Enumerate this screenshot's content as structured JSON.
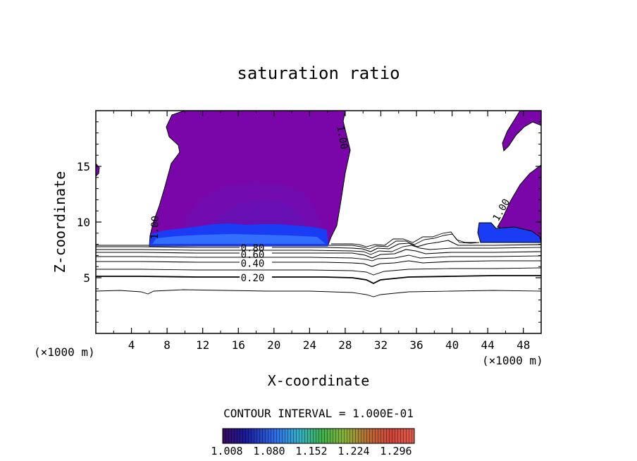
{
  "chart_data": {
    "type": "contour",
    "title": "saturation ratio",
    "xlabel": "X-coordinate",
    "ylabel": "Z-coordinate",
    "x_unit_left": "(×1000 m)",
    "x_unit_right": "(×1000 m)",
    "xlim": [
      0,
      50
    ],
    "ylim": [
      0,
      20
    ],
    "x_ticks": [
      4,
      8,
      12,
      16,
      20,
      24,
      28,
      32,
      36,
      40,
      44,
      48
    ],
    "y_ticks": [
      5,
      10,
      15
    ],
    "contour_interval_text": "CONTOUR INTERVAL = 1.000E-01",
    "contour_levels": [
      0.1,
      0.2,
      0.3,
      0.4,
      0.5,
      0.6,
      0.7,
      0.8,
      0.9,
      1.0
    ],
    "contour_labels": [
      {
        "text": "0.20",
        "x": 17.6,
        "y": 5.0
      },
      {
        "text": "0.40",
        "x": 17.6,
        "y": 6.3
      },
      {
        "text": "0.60",
        "x": 17.6,
        "y": 7.1
      },
      {
        "text": "0.80",
        "x": 17.6,
        "y": 7.7
      },
      {
        "text": "1.00",
        "x": 27.7,
        "y": 17.6
      },
      {
        "text": "1.00",
        "x": 45.5,
        "y": 11.1
      },
      {
        "text": "1.00",
        "x": 6.6,
        "y": 9.5
      }
    ],
    "supersaturated_regions": [
      {
        "name": "main cloud",
        "x_range": [
          6,
          28
        ],
        "z_range": [
          8,
          20
        ],
        "core_z_range": [
          8,
          9
        ]
      },
      {
        "name": "right cloud",
        "x_range": [
          43,
          50
        ],
        "z_range": [
          8,
          15
        ]
      },
      {
        "name": "upper-right anvil",
        "x_range": [
          45,
          50
        ],
        "z_range": [
          16,
          20
        ]
      },
      {
        "name": "left edge",
        "x_range": [
          0,
          0.3
        ],
        "z_range": [
          14.3,
          15.2
        ]
      }
    ],
    "colorbar": {
      "min": 1.008,
      "max": 1.32,
      "tick_labels": [
        "1.008",
        "1.080",
        "1.152",
        "1.224",
        "1.296"
      ]
    },
    "colors": {
      "cloud": "#7a06aa",
      "cloud_inner": "#6a10b4",
      "cloud_base": "#1a3cf4",
      "cloud_base_light": "#3878ff"
    }
  }
}
